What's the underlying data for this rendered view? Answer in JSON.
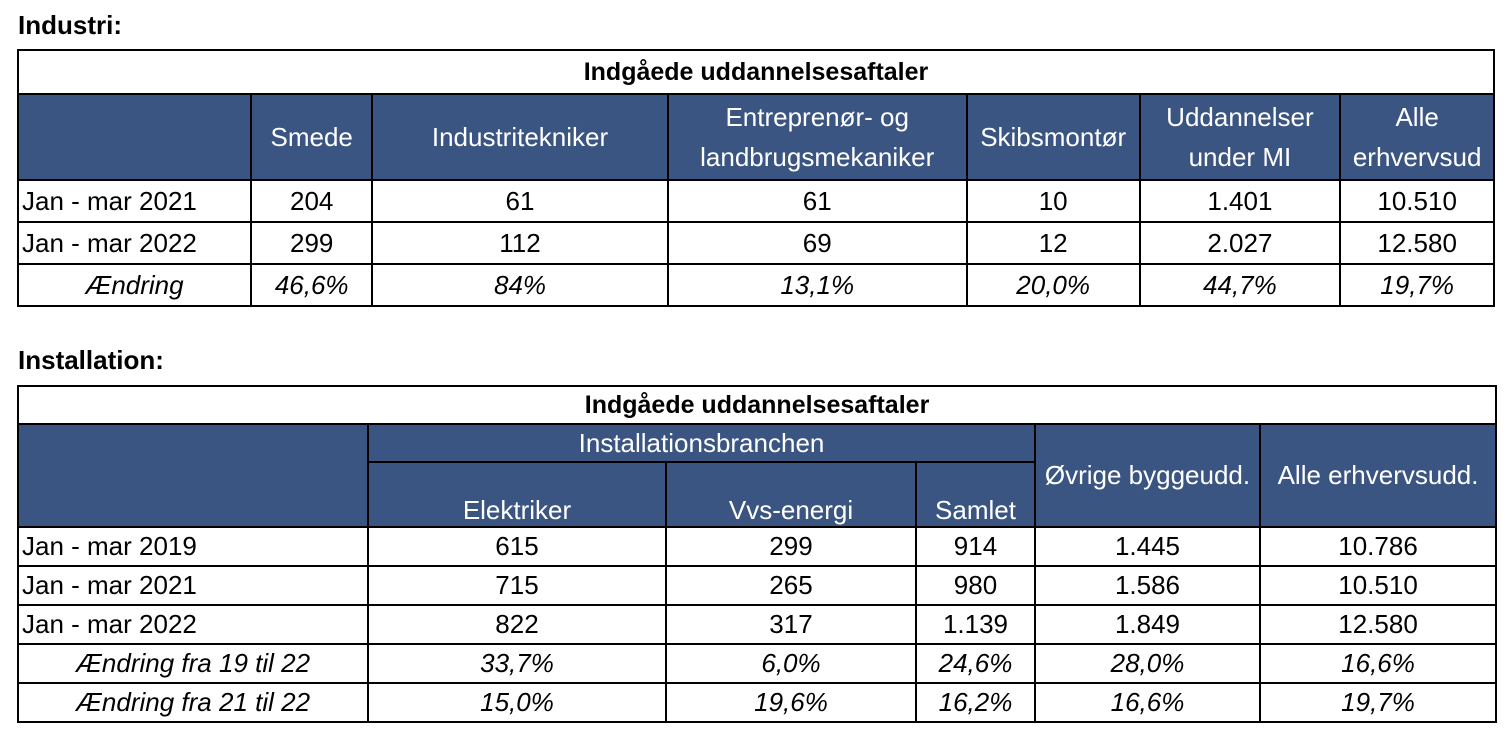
{
  "industri": {
    "heading": "Industri:",
    "caption": "Indgåede uddannelsesaftaler",
    "columns": [
      "",
      "Smede",
      "Industritekniker",
      "Entreprenør- og landbrugsmekaniker",
      "Skibsmontør",
      "Uddannelser under MI",
      "Alle erhvervsud"
    ],
    "columns_lines": [
      [
        ""
      ],
      [
        "Smede"
      ],
      [
        "Industritekniker"
      ],
      [
        "Entreprenør- og",
        "landbrugsmekaniker"
      ],
      [
        "Skibsmontør"
      ],
      [
        "Uddannelser",
        "under MI"
      ],
      [
        "Alle",
        "erhvervsud"
      ]
    ],
    "rows": [
      {
        "label": "Jan - mar 2021",
        "values": [
          "204",
          "61",
          "61",
          "10",
          "1.401",
          "10.510"
        ]
      },
      {
        "label": "Jan - mar 2022",
        "values": [
          "299",
          "112",
          "69",
          "12",
          "2.027",
          "12.580"
        ]
      },
      {
        "label": "Ændring",
        "values": [
          "46,6%",
          "84%",
          "13,1%",
          "20,0%",
          "44,7%",
          "19,7%"
        ]
      }
    ]
  },
  "installation": {
    "heading": "Installation:",
    "caption": "Indgåede uddannelsesaftaler",
    "group_header": "Installationsbranchen",
    "sub_columns": [
      "Elektriker",
      "Vvs-energi",
      "Samlet"
    ],
    "other_columns": [
      "Øvrige byggeudd.",
      "Alle erhvervsudd."
    ],
    "rows": [
      {
        "label": "Jan - mar 2019",
        "values": [
          "615",
          "299",
          "914",
          "1.445",
          "10.786"
        ]
      },
      {
        "label": "Jan - mar 2021",
        "values": [
          "715",
          "265",
          "980",
          "1.586",
          "10.510"
        ]
      },
      {
        "label": "Jan - mar 2022",
        "values": [
          "822",
          "317",
          "1.139",
          "1.849",
          "12.580"
        ]
      },
      {
        "label": "Ændring fra 19 til 22",
        "values": [
          "33,7%",
          "6,0%",
          "24,6%",
          "28,0%",
          "16,6%"
        ]
      },
      {
        "label": "Ændring fra 21 til 22",
        "values": [
          "15,0%",
          "19,6%",
          "16,2%",
          "16,6%",
          "19,7%"
        ]
      }
    ]
  }
}
